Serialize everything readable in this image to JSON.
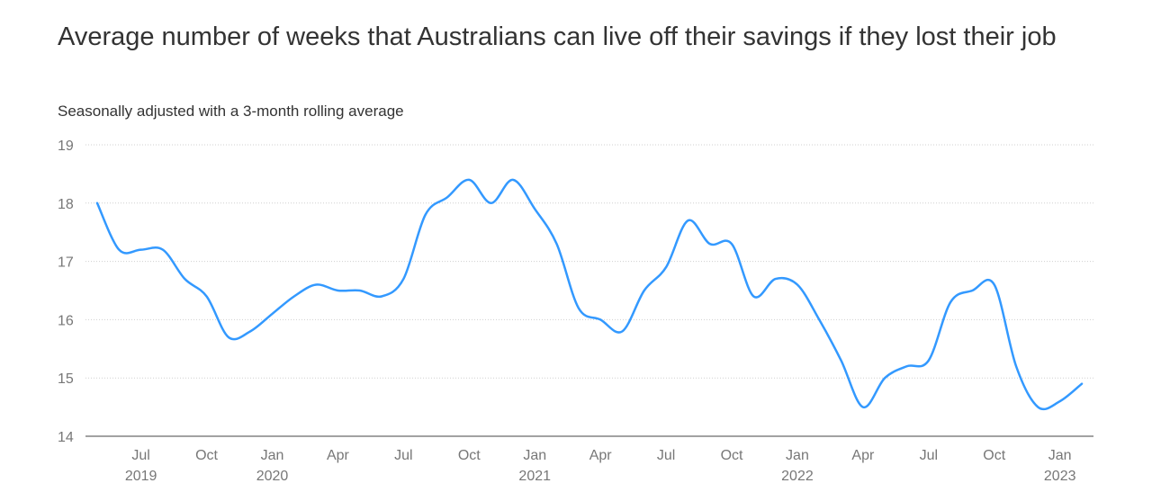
{
  "chart_data": {
    "type": "line",
    "title": "Average number of weeks that Australians can live off their savings if they lost their job",
    "subtitle": "Seasonally adjusted with a 3-month rolling average",
    "xlabel": "",
    "ylabel": "",
    "ylim": [
      14,
      19
    ],
    "y_ticks": [
      14,
      15,
      16,
      17,
      18,
      19
    ],
    "x_range": [
      "2019-04",
      "2023-03"
    ],
    "x_ticks": [
      {
        "date": "2019-07",
        "label": "Jul",
        "year": "2019"
      },
      {
        "date": "2019-10",
        "label": "Oct",
        "year": ""
      },
      {
        "date": "2020-01",
        "label": "Jan",
        "year": "2020"
      },
      {
        "date": "2020-04",
        "label": "Apr",
        "year": ""
      },
      {
        "date": "2020-07",
        "label": "Jul",
        "year": ""
      },
      {
        "date": "2020-10",
        "label": "Oct",
        "year": ""
      },
      {
        "date": "2021-01",
        "label": "Jan",
        "year": "2021"
      },
      {
        "date": "2021-04",
        "label": "Apr",
        "year": ""
      },
      {
        "date": "2021-07",
        "label": "Jul",
        "year": ""
      },
      {
        "date": "2021-10",
        "label": "Oct",
        "year": ""
      },
      {
        "date": "2022-01",
        "label": "Jan",
        "year": "2022"
      },
      {
        "date": "2022-04",
        "label": "Apr",
        "year": ""
      },
      {
        "date": "2022-07",
        "label": "Jul",
        "year": ""
      },
      {
        "date": "2022-10",
        "label": "Oct",
        "year": ""
      },
      {
        "date": "2023-01",
        "label": "Jan",
        "year": "2023"
      }
    ],
    "grid": true,
    "line_color": "#3399ff",
    "series": [
      {
        "name": "",
        "x": [
          "2019-05",
          "2019-06",
          "2019-07",
          "2019-08",
          "2019-09",
          "2019-10",
          "2019-11",
          "2019-12",
          "2020-01",
          "2020-02",
          "2020-03",
          "2020-04",
          "2020-05",
          "2020-06",
          "2020-07",
          "2020-08",
          "2020-09",
          "2020-10",
          "2020-11",
          "2020-12",
          "2021-01",
          "2021-02",
          "2021-03",
          "2021-04",
          "2021-05",
          "2021-06",
          "2021-07",
          "2021-08",
          "2021-09",
          "2021-10",
          "2021-11",
          "2021-12",
          "2022-01",
          "2022-02",
          "2022-03",
          "2022-04",
          "2022-05",
          "2022-06",
          "2022-07",
          "2022-08",
          "2022-09",
          "2022-10",
          "2022-11",
          "2022-12",
          "2023-01",
          "2023-02"
        ],
        "values": [
          18.0,
          17.2,
          17.2,
          17.2,
          16.7,
          16.4,
          15.7,
          15.8,
          16.1,
          16.4,
          16.6,
          16.5,
          16.5,
          16.4,
          16.7,
          17.8,
          18.1,
          18.4,
          18.0,
          18.4,
          17.9,
          17.3,
          16.2,
          16.0,
          15.8,
          16.5,
          16.9,
          17.7,
          17.3,
          17.3,
          16.4,
          16.7,
          16.6,
          16.0,
          15.3,
          14.5,
          15.0,
          15.2,
          15.3,
          16.3,
          16.5,
          16.6,
          15.2,
          14.5,
          14.6,
          14.9
        ]
      }
    ]
  }
}
